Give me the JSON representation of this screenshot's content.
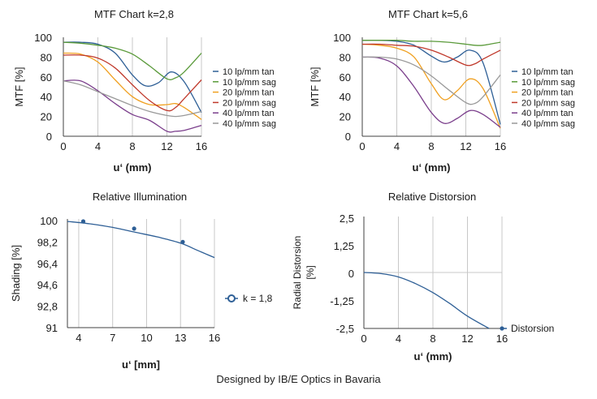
{
  "footer": "Designed by IB/E Optics  in Bavaria",
  "chart_data": [
    {
      "id": "mtf1",
      "type": "line",
      "title": "MTF Chart k=2,8",
      "xlabel": "u‘ (mm)",
      "ylabel": "MTF [%]",
      "xlim": [
        0,
        16
      ],
      "ylim": [
        0,
        100
      ],
      "xticks": [
        0,
        4,
        8,
        12,
        16
      ],
      "yticks": [
        0,
        20,
        40,
        60,
        80,
        100
      ],
      "grid": "vertical",
      "legend": "right",
      "series": [
        {
          "name": "10 lp/mm tan",
          "color": "#2e5f96",
          "x": [
            0,
            2,
            4,
            6,
            8,
            9.5,
            11,
            12.5,
            14,
            16
          ],
          "y": [
            95,
            95,
            93,
            84,
            62,
            51,
            54,
            65,
            55,
            24
          ]
        },
        {
          "name": "10 lp/mm sag",
          "color": "#5a9a3a",
          "x": [
            0,
            2,
            4,
            6,
            8,
            10,
            12,
            13,
            14,
            16
          ],
          "y": [
            95,
            94,
            92,
            89,
            83,
            71,
            58,
            59,
            65,
            84
          ]
        },
        {
          "name": "20 lp/mm tan",
          "color": "#f0a020",
          "x": [
            0,
            2,
            4,
            6,
            8,
            10,
            12,
            13,
            14,
            16
          ],
          "y": [
            84,
            83,
            75,
            57,
            40,
            32,
            32,
            33,
            29,
            17
          ]
        },
        {
          "name": "20 lp/mm sag",
          "color": "#c0392b",
          "x": [
            0,
            2,
            4,
            6,
            8,
            10,
            12,
            13,
            14,
            16
          ],
          "y": [
            82,
            82,
            79,
            69,
            52,
            36,
            26,
            29,
            38,
            57
          ]
        },
        {
          "name": "40 lp/mm tan",
          "color": "#7b3f8c",
          "x": [
            0,
            2,
            4,
            6,
            8,
            10,
            12,
            13,
            14,
            16
          ],
          "y": [
            56,
            56,
            46,
            33,
            22,
            16,
            5,
            5,
            6,
            11
          ]
        },
        {
          "name": "40 lp/mm sag",
          "color": "#999999",
          "x": [
            0,
            2,
            4,
            6,
            8,
            10,
            12,
            13,
            14,
            16
          ],
          "y": [
            56,
            52,
            45,
            38,
            31,
            25,
            21,
            20,
            21,
            25
          ]
        }
      ]
    },
    {
      "id": "mtf2",
      "type": "line",
      "title": "MTF Chart k=5,6",
      "xlabel": "u‘ (mm)",
      "ylabel": "MTF [%]",
      "xlim": [
        0,
        16
      ],
      "ylim": [
        0,
        100
      ],
      "xticks": [
        0,
        4,
        8,
        12,
        16
      ],
      "yticks": [
        0,
        20,
        40,
        60,
        80,
        100
      ],
      "grid": "vertical",
      "legend": "right",
      "series": [
        {
          "name": "10 lp/mm tan",
          "color": "#2e5f96",
          "x": [
            0,
            2,
            4,
            6,
            8,
            9.5,
            11,
            12.5,
            14,
            16
          ],
          "y": [
            97,
            97,
            96,
            92,
            81,
            75,
            80,
            87,
            74,
            12
          ]
        },
        {
          "name": "10 lp/mm sag",
          "color": "#5a9a3a",
          "x": [
            0,
            2,
            4,
            6,
            8,
            10,
            12,
            13,
            14,
            16
          ],
          "y": [
            97,
            97,
            97,
            96,
            96,
            95,
            93,
            92,
            92,
            95
          ]
        },
        {
          "name": "20 lp/mm tan",
          "color": "#f0a020",
          "x": [
            0,
            2,
            4,
            6,
            8,
            9.5,
            11,
            12.5,
            14,
            16
          ],
          "y": [
            93,
            92,
            89,
            80,
            53,
            37,
            46,
            58,
            48,
            8
          ]
        },
        {
          "name": "20 lp/mm sag",
          "color": "#c0392b",
          "x": [
            0,
            2,
            4,
            6,
            8,
            10,
            12,
            13,
            14,
            16
          ],
          "y": [
            93,
            93,
            92,
            91,
            87,
            80,
            72,
            73,
            78,
            87
          ]
        },
        {
          "name": "40 lp/mm tan",
          "color": "#7b3f8c",
          "x": [
            0,
            2,
            4,
            6,
            8,
            9.5,
            11,
            12.5,
            14,
            16
          ],
          "y": [
            80,
            79,
            71,
            50,
            24,
            13,
            18,
            26,
            22,
            9
          ]
        },
        {
          "name": "40 lp/mm sag",
          "color": "#999999",
          "x": [
            0,
            2,
            4,
            6,
            8,
            10,
            12,
            13,
            14,
            16
          ],
          "y": [
            80,
            80,
            78,
            72,
            61,
            47,
            34,
            33,
            40,
            62
          ]
        }
      ]
    },
    {
      "id": "illum",
      "type": "line",
      "title": "Relative Illumination",
      "xlabel": "u‘ [mm]",
      "ylabel": "Shading [%]",
      "xlim": [
        3,
        16
      ],
      "ylim": [
        91,
        100
      ],
      "xticks": [
        4,
        7,
        10,
        13,
        16
      ],
      "ytick_labels": [
        "100",
        "98,2",
        "96,4",
        "94,6",
        "92,8",
        "91"
      ],
      "grid": "vertical",
      "legend": "right",
      "series": [
        {
          "name": "k = 1,8",
          "color": "#2e5f96",
          "x": [
            3,
            5,
            7,
            9,
            11,
            13,
            14.5,
            16
          ],
          "y": [
            99.8,
            99.6,
            99.3,
            98.9,
            98.5,
            98.0,
            97.4,
            96.8
          ],
          "markers_x": [
            4.4,
            8.9,
            13.2
          ],
          "markers_y": [
            99.8,
            99.2,
            98.1
          ]
        }
      ]
    },
    {
      "id": "distort",
      "type": "line",
      "title": "Relative Distorsion",
      "xlabel": "u‘ (mm)",
      "ylabel": "Radial Distorsion [%]",
      "xlim": [
        0,
        16
      ],
      "ylim": [
        -2.5,
        2.5
      ],
      "xticks": [
        0,
        4,
        8,
        12,
        16
      ],
      "ytick_labels": [
        "2,5",
        "1,25",
        "0",
        "-1,25",
        "-2,5"
      ],
      "grid": "vertical",
      "legend": "right",
      "series": [
        {
          "name": "Distorsion",
          "color": "#2e5f96",
          "x": [
            0,
            2,
            4,
            6,
            8,
            10,
            12,
            14.5
          ],
          "y": [
            0,
            -0.05,
            -0.2,
            -0.5,
            -0.9,
            -1.4,
            -1.95,
            -2.5
          ],
          "markers_x": [
            16
          ],
          "markers_y": [
            -2.5
          ]
        }
      ]
    }
  ]
}
